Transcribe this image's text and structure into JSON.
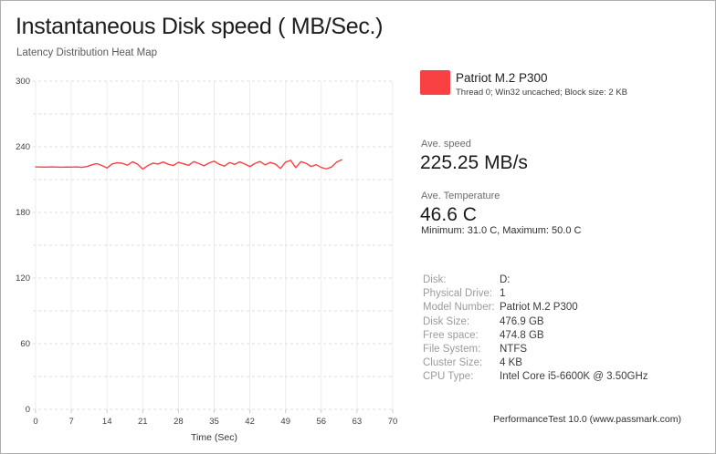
{
  "window": {
    "title": "Instantaneous Disk speed ( MB/Sec.)",
    "subtitle": "Latency Distribution Heat Map",
    "footer": "PerformanceTest 10.0 (www.passmark.com)"
  },
  "legend": {
    "name": "Patriot M.2 P300",
    "details": "Thread 0; Win32 uncached; Block size: 2 KB",
    "swatch_color": "#f94144"
  },
  "stats": {
    "speed_label": "Ave. speed",
    "speed_value": "225.25 MB/s",
    "temp_label": "Ave. Temperature",
    "temp_value": "46.6 C",
    "temp_minmax": "Minimum: 31.0 C, Maximum: 50.0 C"
  },
  "disk_info": {
    "rows": [
      {
        "label": "Disk:",
        "value": "D:"
      },
      {
        "label": "Physical Drive:",
        "value": "1"
      },
      {
        "label": "Model Number:",
        "value": "Patriot M.2 P300"
      },
      {
        "label": "Disk Size:",
        "value": "476.9 GB"
      },
      {
        "label": "Free space:",
        "value": "474.8 GB"
      },
      {
        "label": "File System:",
        "value": "NTFS"
      },
      {
        "label": "Cluster Size:",
        "value": "4 KB"
      },
      {
        "label": "CPU Type:",
        "value": "Intel Core i5-6600K @ 3.50GHz"
      }
    ]
  },
  "chart_data": {
    "type": "line",
    "title": "Instantaneous Disk speed ( MB/Sec.)",
    "xlabel": "Time (Sec)",
    "ylabel": "",
    "xlim": [
      0,
      70
    ],
    "ylim": [
      0,
      300
    ],
    "x_ticks": [
      0,
      7,
      14,
      21,
      28,
      35,
      42,
      49,
      56,
      63,
      70
    ],
    "y_ticks": [
      0,
      60,
      120,
      180,
      240,
      300
    ],
    "y_minor_step": 30,
    "grid": true,
    "legend_position": "top-right",
    "line_color": "#f94144",
    "series": [
      {
        "name": "Patriot M.2 P300",
        "x": [
          0,
          1,
          2,
          3,
          4,
          5,
          6,
          7,
          8,
          9,
          10,
          11,
          12,
          13,
          14,
          15,
          16,
          17,
          18,
          19,
          20,
          21,
          22,
          23,
          24,
          25,
          26,
          27,
          28,
          29,
          30,
          31,
          32,
          33,
          34,
          35,
          36,
          37,
          38,
          39,
          40,
          41,
          42,
          43,
          44,
          45,
          46,
          47,
          48,
          49,
          50,
          51,
          52,
          53,
          54,
          55,
          56,
          57,
          58,
          59,
          60
        ],
        "values": [
          221.6,
          221.5,
          221.4,
          221.6,
          221.5,
          221.3,
          221.5,
          221.4,
          221.6,
          221.2,
          221.8,
          223.5,
          224.6,
          222.8,
          220.6,
          224.3,
          225.4,
          224.9,
          223.2,
          226.3,
          224.1,
          219.6,
          222.8,
          225.0,
          224.2,
          226.1,
          224.0,
          222.9,
          225.8,
          224.4,
          223.1,
          226.4,
          224.7,
          222.6,
          225.2,
          226.8,
          224.0,
          222.3,
          225.6,
          223.9,
          226.2,
          224.3,
          221.9,
          224.8,
          226.5,
          223.4,
          225.7,
          224.1,
          220.2,
          226.0,
          227.6,
          220.9,
          226.4,
          224.9,
          222.0,
          223.6,
          221.1,
          219.8,
          221.5,
          225.9,
          228.1
        ]
      }
    ]
  }
}
